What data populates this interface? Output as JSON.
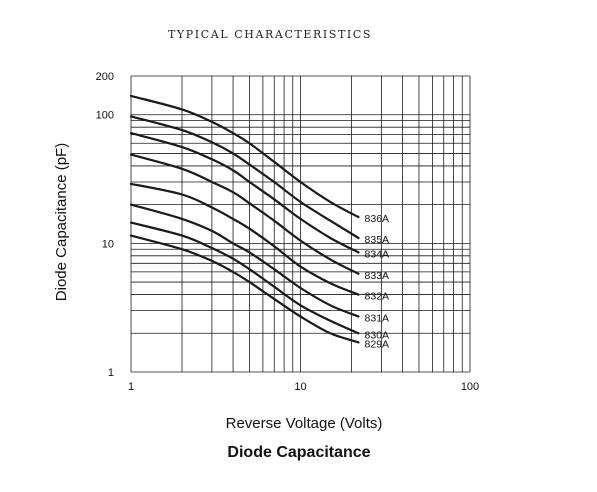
{
  "page": {
    "heading": "TYPICAL CHARACTERISTICS"
  },
  "chart_data": {
    "type": "line",
    "title": "Diode Capacitance",
    "xlabel": "Reverse Voltage (Volts)",
    "ylabel": "Diode Capacitance (pF)",
    "xscale": "log",
    "yscale": "log",
    "xlim": [
      1,
      100
    ],
    "ylim": [
      1,
      200
    ],
    "x_ticks": [
      "1",
      "10",
      "100"
    ],
    "y_ticks": [
      "1",
      "10",
      "100",
      "200"
    ],
    "x_tick_values": [
      1,
      10,
      100
    ],
    "y_tick_values": [
      1,
      10,
      100,
      200
    ],
    "grid": true,
    "series": [
      {
        "name": "836A",
        "x": [
          1,
          2,
          3,
          4,
          5,
          7,
          10,
          15,
          22
        ],
        "values": [
          140,
          110,
          88,
          72,
          60,
          43,
          30,
          21,
          16
        ]
      },
      {
        "name": "835A",
        "x": [
          1,
          2,
          3,
          4,
          5,
          7,
          10,
          15,
          22
        ],
        "values": [
          97,
          76,
          61,
          50,
          41,
          30,
          21,
          15,
          11
        ]
      },
      {
        "name": "834A",
        "x": [
          1,
          2,
          3,
          4,
          5,
          7,
          10,
          15,
          22
        ],
        "values": [
          72,
          56,
          45,
          37,
          30,
          22,
          15.5,
          11,
          8.5
        ]
      },
      {
        "name": "833A",
        "x": [
          1,
          2,
          3,
          4,
          5,
          7,
          10,
          15,
          22
        ],
        "values": [
          49,
          38,
          30,
          25,
          20.5,
          15,
          10.5,
          7.5,
          5.8
        ]
      },
      {
        "name": "832A",
        "x": [
          1,
          2,
          3,
          4,
          5,
          7,
          10,
          15,
          22
        ],
        "values": [
          29,
          24,
          19,
          15.5,
          13,
          9.5,
          6.6,
          4.9,
          4
        ]
      },
      {
        "name": "831A",
        "x": [
          1,
          2,
          3,
          4,
          5,
          7,
          10,
          15,
          22
        ],
        "values": [
          20,
          15.5,
          12.5,
          10,
          8.5,
          6.3,
          4.5,
          3.3,
          2.7
        ]
      },
      {
        "name": "830A",
        "x": [
          1,
          2,
          3,
          4,
          5,
          7,
          10,
          15,
          22
        ],
        "values": [
          14.5,
          11.5,
          9.2,
          7.6,
          6.3,
          4.6,
          3.3,
          2.5,
          2
        ]
      },
      {
        "name": "829A",
        "x": [
          1,
          2,
          3,
          4,
          5,
          7,
          10,
          15,
          22
        ],
        "values": [
          11.5,
          9,
          7.3,
          6,
          5,
          3.7,
          2.7,
          2,
          1.7
        ]
      }
    ]
  }
}
